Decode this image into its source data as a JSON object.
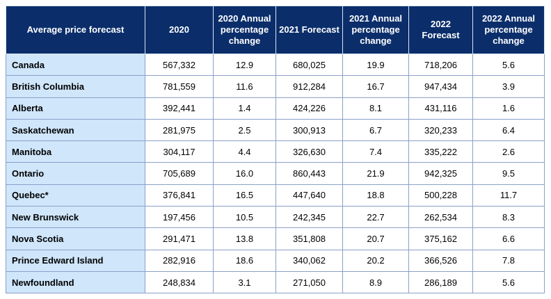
{
  "chart_data": {
    "type": "table",
    "columns": [
      "Average price forecast",
      "2020",
      "2020 Annual percentage change",
      "2021 Forecast",
      "2021 Annual percentage change",
      "2022 Forecast",
      "2022 Annual percentage change"
    ],
    "rows": [
      [
        "Canada",
        "567,332",
        "12.9",
        "680,025",
        "19.9",
        "718,206",
        "5.6"
      ],
      [
        "British Columbia",
        "781,559",
        "11.6",
        "912,284",
        "16.7",
        "947,434",
        "3.9"
      ],
      [
        "Alberta",
        "392,441",
        "1.4",
        "424,226",
        "8.1",
        "431,116",
        "1.6"
      ],
      [
        "Saskatchewan",
        "281,975",
        "2.5",
        "300,913",
        "6.7",
        "320,233",
        "6.4"
      ],
      [
        "Manitoba",
        "304,117",
        "4.4",
        "326,630",
        "7.4",
        "335,222",
        "2.6"
      ],
      [
        "Ontario",
        "705,689",
        "16.0",
        "860,443",
        "21.9",
        "942,325",
        "9.5"
      ],
      [
        "Quebec*",
        "376,841",
        "16.5",
        "447,640",
        "18.8",
        "500,228",
        "11.7"
      ],
      [
        "New Brunswick",
        "197,456",
        "10.5",
        "242,345",
        "22.7",
        "262,534",
        "8.3"
      ],
      [
        "Nova Scotia",
        "291,471",
        "13.8",
        "351,808",
        "20.7",
        "375,162",
        "6.6"
      ],
      [
        "Prince Edward Island",
        "282,916",
        "18.6",
        "340,062",
        "20.2",
        "366,526",
        "7.8"
      ],
      [
        "Newfoundland",
        "248,834",
        "3.1",
        "271,050",
        "8.9",
        "286,189",
        "5.6"
      ]
    ],
    "colors": {
      "header_bg": "#0b2e6b",
      "header_text": "#ffffff",
      "region_bg": "#cfe6fb",
      "cell_bg": "#ffffff",
      "border": "#8aa0c8"
    }
  }
}
